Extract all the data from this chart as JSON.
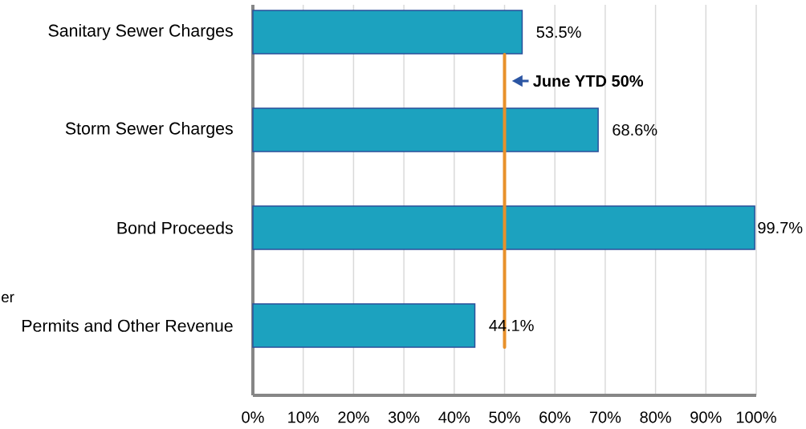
{
  "chart_data": {
    "type": "bar",
    "orientation": "horizontal",
    "categories": [
      "Sanitary Sewer Charges",
      "Storm Sewer Charges",
      "Bond Proceeds",
      "Permits and Other Revenue"
    ],
    "values": [
      53.5,
      68.6,
      99.7,
      44.1
    ],
    "value_labels": [
      "53.5%",
      "68.6%",
      "99.7%",
      "44.1%"
    ],
    "color": "#1ca2bf",
    "xlim": [
      0,
      100
    ],
    "xticks": [
      {
        "value": 0,
        "label": "0%"
      },
      {
        "value": 10,
        "label": "10%"
      },
      {
        "value": 20,
        "label": "20%"
      },
      {
        "value": 30,
        "label": "30%"
      },
      {
        "value": 40,
        "label": "40%"
      },
      {
        "value": 50,
        "label": "50%"
      },
      {
        "value": 60,
        "label": "60%"
      },
      {
        "value": 70,
        "label": "70%"
      },
      {
        "value": 80,
        "label": "80%"
      },
      {
        "value": 90,
        "label": "90%"
      },
      {
        "value": 100,
        "label": "100%"
      }
    ],
    "grid": "x",
    "ref_lines": [
      {
        "axis": "x",
        "value": 50,
        "label": "June YTD 50%",
        "color": "#e8912b"
      }
    ],
    "annotations": [
      "er"
    ]
  }
}
